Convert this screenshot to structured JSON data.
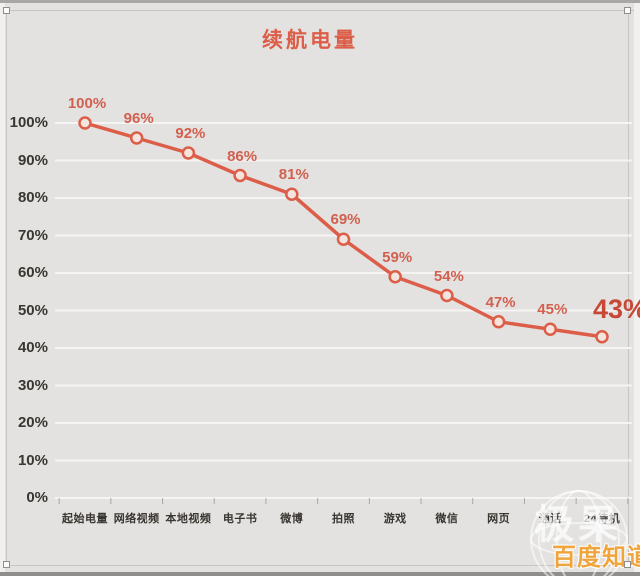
{
  "title": "续航电量",
  "chart_data": {
    "type": "line",
    "title": "续航电量",
    "categories": [
      "起始电量",
      "网络视频",
      "本地视频",
      "电子书",
      "微博",
      "拍照",
      "游戏",
      "微信",
      "网页",
      "通话",
      "24待机"
    ],
    "values": [
      100,
      96,
      92,
      86,
      81,
      69,
      59,
      54,
      47,
      45,
      43
    ],
    "point_labels": [
      "100%",
      "96%",
      "92%",
      "86%",
      "81%",
      "69%",
      "59%",
      "54%",
      "47%",
      "45%",
      "43%"
    ],
    "emphasized_last_point": true,
    "xlabel": "",
    "ylabel": "",
    "ylim": [
      0,
      100
    ],
    "y_tick_step": 10,
    "y_tick_labels": [
      "0%",
      "10%",
      "20%",
      "30%",
      "40%",
      "50%",
      "60%",
      "70%",
      "80%",
      "90%",
      "100%"
    ],
    "grid": "horizontal",
    "legend": "none",
    "colors": {
      "line": "#dc5e49",
      "point_fill": "#f3e4dd",
      "value_label": "#d2604f",
      "big_label": "#c84838",
      "title": "#dc5e49",
      "axis_text": "#3a3631",
      "gridline": "#f5f4f2",
      "tick": "#aaa7a3",
      "background": "#e3e2e0"
    }
  },
  "watermark": {
    "logo_text": "极果",
    "brand_text": "百度知道",
    "brand_color": "#f0a43c"
  }
}
